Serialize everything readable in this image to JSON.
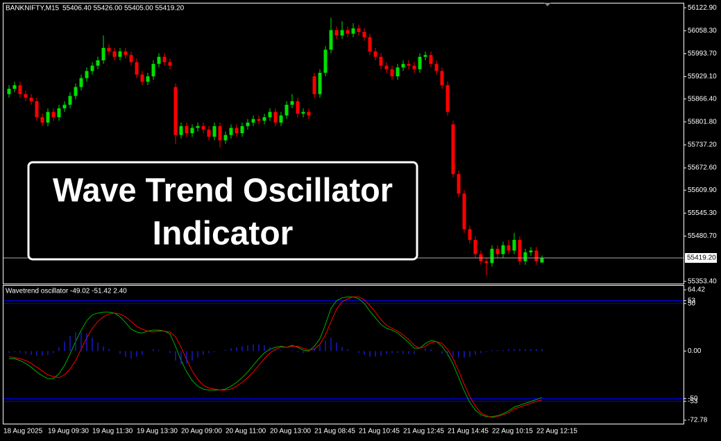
{
  "chart_data": [
    {
      "type": "candlestick",
      "symbol": "BANKNIFTY,M15",
      "ohlc_text": "55406.40 55426.00 55405.00 55419.20",
      "categories": [
        "18 Aug 2025",
        null,
        null,
        null,
        null,
        null,
        null,
        null,
        "19 Aug 09:30",
        null,
        null,
        null,
        null,
        null,
        null,
        null,
        "19 Aug 11:30",
        null,
        null,
        null,
        null,
        null,
        null,
        null,
        "19 Aug 13:30",
        null,
        null,
        null,
        null,
        null,
        null,
        null,
        "20 Aug 09:00",
        null,
        null,
        null,
        null,
        null,
        null,
        null,
        "20 Aug 11:00",
        null,
        null,
        null,
        null,
        null,
        null,
        null,
        "20 Aug 13:00",
        null,
        null,
        null,
        null,
        null,
        null,
        null,
        "21 Aug 08:45",
        null,
        null,
        null,
        null,
        null,
        null,
        null,
        "21 Aug 10:45",
        null,
        null,
        null,
        null,
        null,
        null,
        null,
        "21 Aug 12:45",
        null,
        null,
        null,
        null,
        null,
        null,
        null,
        "21 Aug 14:45",
        null,
        null,
        null,
        null,
        null,
        null,
        null,
        "22 Aug 10:15",
        null,
        null,
        null,
        null,
        null,
        null,
        null,
        "22 Aug 12:15"
      ],
      "open": [
        55880,
        55895,
        55905,
        55880,
        55870,
        55860,
        55815,
        55800,
        55830,
        55815,
        55840,
        55850,
        55875,
        55900,
        55925,
        55945,
        55960,
        55975,
        56010,
        56000,
        55985,
        56000,
        55990,
        55970,
        55935,
        55915,
        55930,
        55965,
        55985,
        55970,
        55900,
        55765,
        55790,
        55770,
        55785,
        55790,
        55780,
        55760,
        55790,
        55750,
        55765,
        55785,
        55770,
        55790,
        55800,
        55810,
        55805,
        55815,
        55830,
        55800,
        55820,
        55850,
        55860,
        55825,
        55830,
        55930,
        55880,
        55940,
        56005,
        56060,
        56045,
        56060,
        56050,
        56065,
        56055,
        56040,
        56000,
        55985,
        55960,
        55950,
        55930,
        55955,
        55965,
        55960,
        55950,
        55985,
        55990,
        55965,
        55945,
        55905,
        55795,
        55655,
        55600,
        55500,
        55470,
        55430,
        55410,
        55405,
        55445,
        55430,
        55455,
        55440,
        55470,
        55410,
        55435,
        55440,
        55406.4
      ],
      "high": [
        55905,
        55915,
        55915,
        55890,
        55880,
        55870,
        55825,
        55840,
        55840,
        55850,
        55860,
        55885,
        55910,
        55935,
        55955,
        55970,
        55985,
        56045,
        56020,
        56010,
        56010,
        56010,
        56000,
        55980,
        55945,
        55940,
        55975,
        55995,
        55995,
        55980,
        55910,
        55800,
        55800,
        55795,
        55800,
        55800,
        55790,
        55800,
        55800,
        55775,
        55795,
        55795,
        55800,
        55810,
        55820,
        55820,
        55825,
        55840,
        55840,
        55830,
        55860,
        55880,
        55870,
        55840,
        55840,
        55940,
        55950,
        56015,
        56095,
        56070,
        56085,
        56070,
        56080,
        56075,
        56065,
        56050,
        56010,
        55995,
        55970,
        55960,
        55965,
        55975,
        55975,
        55970,
        55995,
        56000,
        56000,
        55975,
        55955,
        55915,
        55805,
        55665,
        55610,
        55510,
        55480,
        55440,
        55420,
        55455,
        55455,
        55465,
        55470,
        55490,
        55480,
        55445,
        55450,
        55450,
        55426
      ],
      "low": [
        55870,
        55885,
        55870,
        55860,
        55850,
        55805,
        55790,
        55790,
        55805,
        55805,
        55830,
        55840,
        55865,
        55890,
        55915,
        55935,
        55950,
        55965,
        55990,
        55975,
        55975,
        55980,
        55960,
        55925,
        55905,
        55905,
        55920,
        55955,
        55960,
        55950,
        55740,
        55755,
        55760,
        55760,
        55775,
        55770,
        55750,
        55750,
        55730,
        55740,
        55755,
        55760,
        55760,
        55780,
        55790,
        55795,
        55795,
        55805,
        55790,
        55790,
        55810,
        55840,
        55815,
        55815,
        55810,
        55870,
        55870,
        55930,
        55995,
        56035,
        56035,
        56040,
        56040,
        56045,
        56030,
        55990,
        55975,
        55950,
        55940,
        55920,
        55920,
        55945,
        55950,
        55940,
        55940,
        55975,
        55955,
        55935,
        55895,
        55820,
        55645,
        55590,
        55490,
        55460,
        55420,
        55400,
        55371,
        55395,
        55420,
        55420,
        55430,
        55430,
        55400,
        55400,
        55425,
        55400,
        55405
      ],
      "close": [
        55895,
        55905,
        55880,
        55870,
        55860,
        55815,
        55800,
        55830,
        55815,
        55840,
        55850,
        55875,
        55900,
        55925,
        55945,
        55960,
        55975,
        56010,
        56000,
        55985,
        56000,
        55990,
        55970,
        55935,
        55915,
        55930,
        55965,
        55985,
        55970,
        55960,
        55765,
        55790,
        55770,
        55785,
        55790,
        55780,
        55760,
        55790,
        55750,
        55765,
        55785,
        55770,
        55790,
        55800,
        55810,
        55805,
        55815,
        55830,
        55800,
        55820,
        55850,
        55860,
        55825,
        55830,
        55820,
        55880,
        55940,
        56005,
        56060,
        56045,
        56060,
        56050,
        56065,
        56055,
        56040,
        56000,
        55985,
        55960,
        55950,
        55930,
        55955,
        55965,
        55960,
        55950,
        55985,
        55990,
        55965,
        55945,
        55905,
        55830,
        55655,
        55600,
        55500,
        55470,
        55430,
        55410,
        55405,
        55445,
        55430,
        55455,
        55440,
        55470,
        55410,
        55435,
        55440,
        55410,
        55419.2
      ],
      "up_color": "#00e000",
      "down_color": "#ff0000",
      "ylim": [
        55349,
        56135
      ],
      "yticks": [
        {
          "value": 56122.9,
          "label": "56122.90"
        },
        {
          "value": 56058.3,
          "label": "56058.30"
        },
        {
          "value": 55993.7,
          "label": "55993.70"
        },
        {
          "value": 55929.1,
          "label": "55929.10"
        },
        {
          "value": 55866.4,
          "label": "55866.40"
        },
        {
          "value": 55801.8,
          "label": "55801.80"
        },
        {
          "value": 55737.2,
          "label": "55737.20"
        },
        {
          "value": 55672.6,
          "label": "55672.60"
        },
        {
          "value": 55609.9,
          "label": "55609.90"
        },
        {
          "value": 55545.3,
          "label": "55545.30"
        },
        {
          "value": 55480.7,
          "label": "55480.70"
        },
        {
          "value": 55353.4,
          "label": "55353.40"
        }
      ],
      "current_price": {
        "value": 55419.2,
        "label": "55419.20"
      }
    },
    {
      "type": "line",
      "title": "Wavetrend oscillator -49.02 -51.42 2.40",
      "series": [
        {
          "color": "#00b000",
          "values": [
            -8,
            -8,
            -10,
            -13,
            -17,
            -22,
            -26,
            -29,
            -29,
            -24,
            -15,
            -3,
            10,
            22,
            32,
            38,
            40,
            41,
            41,
            40,
            36,
            30,
            23,
            20,
            19,
            21,
            22,
            22,
            21,
            18,
            5,
            -10,
            -22,
            -31,
            -37,
            -40,
            -41,
            -41,
            -41,
            -40,
            -37,
            -33,
            -28,
            -22,
            -15,
            -8,
            -2,
            2,
            4,
            5,
            4,
            6,
            4,
            1,
            0,
            5,
            13,
            28,
            45,
            53,
            56,
            57,
            57,
            55,
            50,
            42,
            35,
            28,
            24,
            22,
            19,
            14,
            9,
            3,
            3,
            8,
            11,
            10,
            5,
            -3,
            -14,
            -28,
            -42,
            -54,
            -62,
            -67,
            -69,
            -69,
            -68,
            -66,
            -63,
            -59,
            -57,
            -55,
            -53,
            -51,
            -49.02
          ]
        },
        {
          "color": "#ff0000",
          "values": [
            -6,
            -7,
            -8,
            -10,
            -13,
            -17,
            -21,
            -25,
            -27,
            -28,
            -25,
            -19,
            -10,
            2,
            14,
            24,
            31,
            36,
            39,
            40,
            39,
            36,
            31,
            26,
            23,
            21,
            20,
            21,
            21,
            20,
            15,
            4,
            -9,
            -21,
            -30,
            -36,
            -39,
            -40,
            -41,
            -41,
            -40,
            -37,
            -33,
            -28,
            -22,
            -15,
            -8,
            -2,
            2,
            4,
            4,
            5,
            5,
            3,
            1,
            2,
            7,
            17,
            31,
            44,
            52,
            55,
            57,
            57,
            54,
            48,
            41,
            33,
            27,
            24,
            21,
            17,
            12,
            6,
            3,
            5,
            9,
            10,
            8,
            2,
            -8,
            -21,
            -35,
            -48,
            -58,
            -65,
            -68,
            -70,
            -69,
            -67,
            -65,
            -61,
            -59,
            -57,
            -55,
            -53,
            -51.42
          ]
        },
        {
          "type": "bar",
          "color": "#2020ff",
          "values": [
            -2,
            -1,
            -2,
            -3,
            -4,
            -5,
            -5,
            -4,
            -2,
            4,
            10,
            16,
            20,
            20,
            18,
            14,
            9,
            5,
            2,
            0,
            -3,
            -6,
            -8,
            -6,
            -4,
            0,
            2,
            1,
            0,
            -2,
            -10,
            -14,
            -13,
            -10,
            -7,
            -4,
            -2,
            -1,
            0,
            1,
            3,
            4,
            5,
            6,
            7,
            7,
            6,
            4,
            2,
            1,
            0,
            1,
            -1,
            -2,
            -1,
            3,
            6,
            11,
            14,
            9,
            4,
            2,
            0,
            -2,
            -4,
            -6,
            -6,
            -5,
            -3,
            -2,
            -2,
            -3,
            -3,
            -3,
            0,
            3,
            2,
            0,
            -3,
            -5,
            -6,
            -7,
            -7,
            -6,
            -4,
            -2,
            -1,
            1,
            1,
            1,
            2,
            2,
            2,
            2,
            2,
            2,
            2.4
          ]
        }
      ],
      "ylim": [
        -72.78,
        64.42
      ],
      "yticks": [
        64.42,
        53,
        50,
        {
          "value": 0,
          "label": "0.00"
        },
        -50,
        -53,
        -72.78
      ],
      "levels": [
        53,
        50,
        -50,
        -53
      ],
      "level_color": "#0000ff"
    }
  ],
  "overlay": {
    "line1": "Wave Trend Oscillator",
    "line2": "Indicator"
  }
}
